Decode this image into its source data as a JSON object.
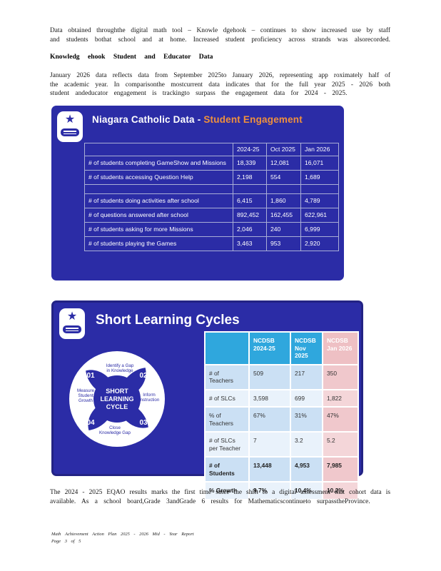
{
  "document": {
    "paragraph1_lines": [
      "Data obtained throughthe digital math tool – Knowle dgehook – continues to show increased use by staff",
      "and students bothat school and at home. Increased student proficiency across strands was alsorecorded."
    ],
    "heading": "Knowledg ehook Student and Educator Data",
    "paragraph2_lines": [
      "January 2026 data reflects data from September 2025to January 2026, representing app roximately half of",
      "the academic year. In comparisonthe mostcurrent data indicates that for the full year 2025 - 2026 both",
      "student andeducator engagement is trackingto surpass the engagement data for 2024 - 2025."
    ],
    "paragraph3_lines": [
      "The 2024 - 2025 EQAO results marks the first time since the shift to a digital assessment that cohort data is",
      "available. As a school board,Grade 3andGrade 6 results for Mathematicscontinueto surpasstheProvince."
    ],
    "footer_line1": "Math Achievement Action Plan 2025 - 2026 Mid - Year Report",
    "footer_line2": "Page 3 of 5"
  },
  "engagement_box": {
    "title_prefix": "Niagara Catholic Data - ",
    "title_highlight": "Student Engagement",
    "icon": "star-book-icon",
    "table": {
      "headers": [
        "",
        "2024-25",
        "Oct 2025",
        "Jan 2026"
      ],
      "rows": [
        {
          "label": "# of students completing GameShow and Missions",
          "values": [
            "18,339",
            "12,081",
            "16,071"
          ]
        },
        {
          "label": "# of students accessing Question Help",
          "values": [
            "2,198",
            "554",
            "1,689"
          ]
        },
        {
          "label": "",
          "values": [
            "",
            "",
            ""
          ]
        },
        {
          "label": "# of students doing activities after school",
          "values": [
            "6,415",
            "1,860",
            "4,789"
          ]
        },
        {
          "label": "# of questions answered after school",
          "values": [
            "892,452",
            "162,455",
            "622,961"
          ]
        },
        {
          "label": "# of students asking for more Missions",
          "values": [
            "2,046",
            "240",
            "6,999"
          ]
        },
        {
          "label": "# of students playing the Games",
          "values": [
            "3,463",
            "953",
            "2,920"
          ]
        }
      ]
    }
  },
  "slc_box": {
    "title": "Short Learning Cycles",
    "icon": "star-book-icon",
    "diagram": {
      "center_lines": [
        "SHORT",
        "LEARNING",
        "CYCLE"
      ],
      "steps": [
        {
          "num": "01",
          "lines": [
            "Identify a Gap",
            "in Knowledge"
          ]
        },
        {
          "num": "02",
          "lines": [
            "Inform",
            "Instruction"
          ]
        },
        {
          "num": "03",
          "lines": [
            "Close",
            "Knowledge Gap"
          ]
        },
        {
          "num": "04",
          "lines": [
            "Measure",
            "Student",
            "Growth"
          ]
        }
      ]
    },
    "table": {
      "headers": [
        "",
        "NCDSB 2024-25",
        "NCDSB Nov 2025",
        "NCDSB Jan 2026"
      ],
      "rows": [
        {
          "label": "# of Teachers",
          "values": [
            "509",
            "217",
            "350"
          ],
          "bold": false
        },
        {
          "label": "# of SLCs",
          "values": [
            "3,598",
            "699",
            "1,822"
          ],
          "bold": false
        },
        {
          "label": "% of Teachers",
          "values": [
            "67%",
            "31%",
            "47%"
          ],
          "bold": false
        },
        {
          "label": "# of SLCs per Teacher",
          "values": [
            "7",
            "3.2",
            "5.2"
          ],
          "bold": false
        },
        {
          "label": "# of Students",
          "values": [
            "13,448",
            "4,953",
            "7,985"
          ],
          "bold": true
        },
        {
          "label": "% Growth",
          "values": [
            "9.7%",
            "10.4%",
            "10.2%"
          ],
          "bold": true
        }
      ]
    }
  },
  "colors": {
    "box_blue": "#2b2ca6",
    "title_orange": "#f0913c",
    "header_cyan": "#2fa7dd",
    "header_pink": "#eec0c4",
    "cell_pink": "#f0c8cc",
    "row_blue_dark": "#cbe0f4",
    "row_blue_light": "#e9f2fb"
  }
}
